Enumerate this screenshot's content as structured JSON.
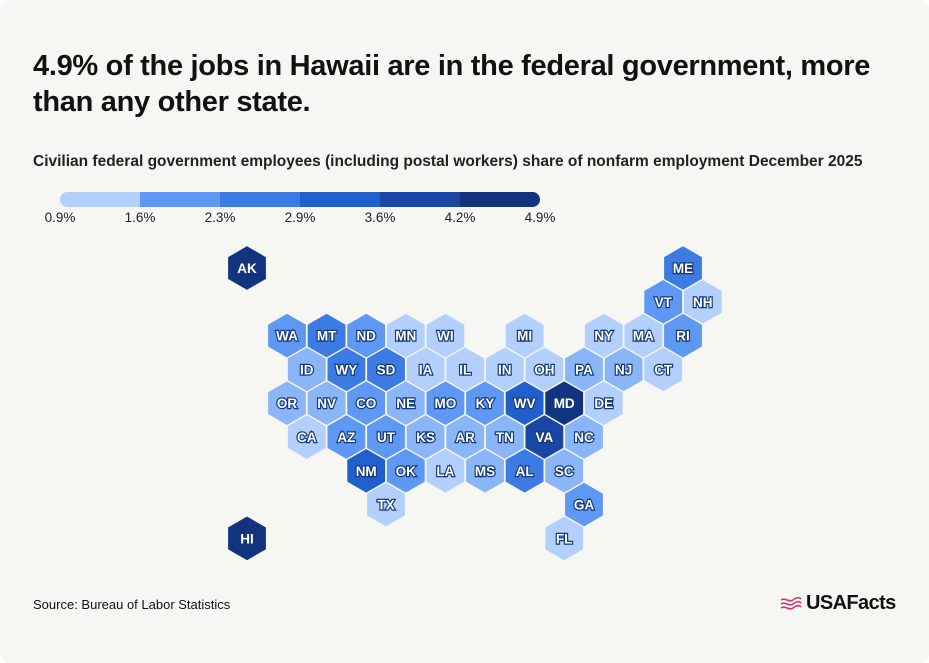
{
  "headline": "4.9% of the jobs in Hawaii are in the federal government, more than any other state.",
  "subtitle": "Civilian federal government employees (including postal workers) share of nonfarm employment December 2025",
  "legend": {
    "ticks": [
      "0.9%",
      "1.6%",
      "2.3%",
      "2.9%",
      "3.6%",
      "4.2%",
      "4.9%"
    ],
    "colors": [
      "#b3d0fc",
      "#8ab6f8",
      "#5e98f3",
      "#3c7be3",
      "#2060cc",
      "#1a46a6",
      "#12337e"
    ]
  },
  "map": {
    "label_outline": "#143a7a",
    "states": [
      {
        "abbr": "AK",
        "col": -1,
        "row": 0,
        "bin": 6
      },
      {
        "abbr": "ME",
        "col": 10,
        "row": 0,
        "bin": 3
      },
      {
        "abbr": "VT",
        "col": 9,
        "row": 1,
        "bin": 2
      },
      {
        "abbr": "NH",
        "col": 10,
        "row": 1,
        "bin": 0
      },
      {
        "abbr": "WA",
        "col": 0,
        "row": 2,
        "bin": 2
      },
      {
        "abbr": "MT",
        "col": 1,
        "row": 2,
        "bin": 3
      },
      {
        "abbr": "ND",
        "col": 2,
        "row": 2,
        "bin": 2
      },
      {
        "abbr": "MN",
        "col": 3,
        "row": 2,
        "bin": 0
      },
      {
        "abbr": "WI",
        "col": 4,
        "row": 2,
        "bin": 0
      },
      {
        "abbr": "MI",
        "col": 6,
        "row": 2,
        "bin": 0
      },
      {
        "abbr": "NY",
        "col": 8,
        "row": 2,
        "bin": 0
      },
      {
        "abbr": "MA",
        "col": 9,
        "row": 2,
        "bin": 0
      },
      {
        "abbr": "RI",
        "col": 10,
        "row": 2,
        "bin": 2
      },
      {
        "abbr": "ID",
        "col": 0,
        "row": 3,
        "bin": 1
      },
      {
        "abbr": "WY",
        "col": 1,
        "row": 3,
        "bin": 3
      },
      {
        "abbr": "SD",
        "col": 2,
        "row": 3,
        "bin": 3
      },
      {
        "abbr": "IA",
        "col": 3,
        "row": 3,
        "bin": 0
      },
      {
        "abbr": "IL",
        "col": 4,
        "row": 3,
        "bin": 0
      },
      {
        "abbr": "IN",
        "col": 5,
        "row": 3,
        "bin": 0
      },
      {
        "abbr": "OH",
        "col": 6,
        "row": 3,
        "bin": 0
      },
      {
        "abbr": "PA",
        "col": 7,
        "row": 3,
        "bin": 1
      },
      {
        "abbr": "NJ",
        "col": 8,
        "row": 3,
        "bin": 1
      },
      {
        "abbr": "CT",
        "col": 9,
        "row": 3,
        "bin": 0
      },
      {
        "abbr": "OR",
        "col": 0,
        "row": 4,
        "bin": 1
      },
      {
        "abbr": "NV",
        "col": 1,
        "row": 4,
        "bin": 1
      },
      {
        "abbr": "CO",
        "col": 2,
        "row": 4,
        "bin": 2
      },
      {
        "abbr": "NE",
        "col": 3,
        "row": 4,
        "bin": 1
      },
      {
        "abbr": "MO",
        "col": 4,
        "row": 4,
        "bin": 2
      },
      {
        "abbr": "KY",
        "col": 5,
        "row": 4,
        "bin": 2
      },
      {
        "abbr": "WV",
        "col": 6,
        "row": 4,
        "bin": 4
      },
      {
        "abbr": "MD",
        "col": 7,
        "row": 4,
        "bin": 6
      },
      {
        "abbr": "DE",
        "col": 8,
        "row": 4,
        "bin": 0
      },
      {
        "abbr": "CA",
        "col": 0,
        "row": 5,
        "bin": 0
      },
      {
        "abbr": "AZ",
        "col": 1,
        "row": 5,
        "bin": 2
      },
      {
        "abbr": "UT",
        "col": 2,
        "row": 5,
        "bin": 2
      },
      {
        "abbr": "KS",
        "col": 3,
        "row": 5,
        "bin": 1
      },
      {
        "abbr": "AR",
        "col": 4,
        "row": 5,
        "bin": 1
      },
      {
        "abbr": "TN",
        "col": 5,
        "row": 5,
        "bin": 1
      },
      {
        "abbr": "VA",
        "col": 6,
        "row": 5,
        "bin": 5
      },
      {
        "abbr": "NC",
        "col": 7,
        "row": 5,
        "bin": 1
      },
      {
        "abbr": "NM",
        "col": 2,
        "row": 6,
        "bin": 4
      },
      {
        "abbr": "OK",
        "col": 3,
        "row": 6,
        "bin": 2
      },
      {
        "abbr": "LA",
        "col": 4,
        "row": 6,
        "bin": 0
      },
      {
        "abbr": "MS",
        "col": 5,
        "row": 6,
        "bin": 1
      },
      {
        "abbr": "AL",
        "col": 6,
        "row": 6,
        "bin": 3
      },
      {
        "abbr": "SC",
        "col": 7,
        "row": 6,
        "bin": 1
      },
      {
        "abbr": "TX",
        "col": 2,
        "row": 7,
        "bin": 0
      },
      {
        "abbr": "GA",
        "col": 7,
        "row": 7,
        "bin": 2
      },
      {
        "abbr": "FL",
        "col": 7,
        "row": 8,
        "bin": 0
      },
      {
        "abbr": "HI",
        "col": -1,
        "row": 8,
        "bin": 6
      }
    ]
  },
  "source": "Source: Bureau of Labor Statistics",
  "logo": {
    "text": "USAFacts",
    "accent": "#d6336c",
    "icon": "us-flag-icon"
  }
}
